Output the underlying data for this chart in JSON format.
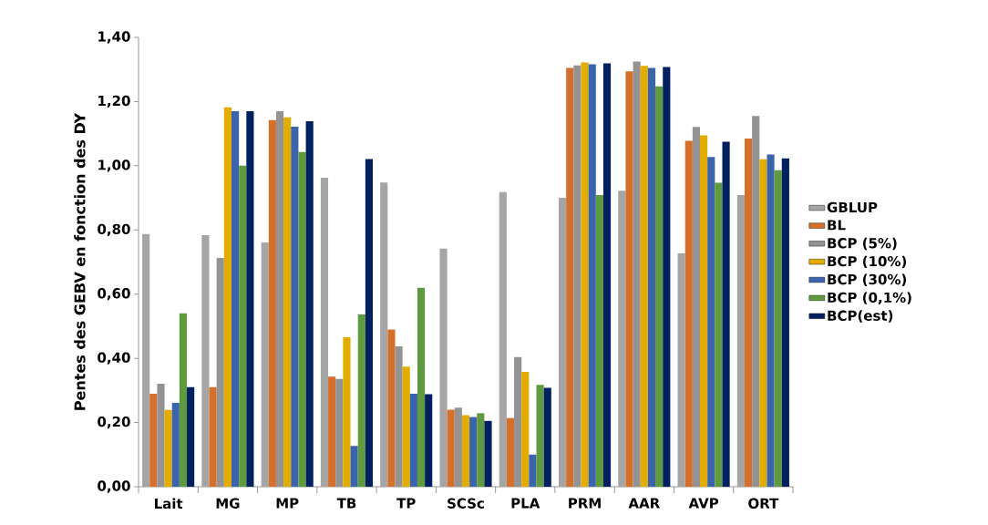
{
  "chart_data": {
    "type": "bar",
    "ylabel": "Pentes des GEBV en fonction des DY",
    "categories": [
      "Lait",
      "MG",
      "MP",
      "TB",
      "TP",
      "SCSc",
      "PLA",
      "PRM",
      "AAR",
      "AVP",
      "ORT"
    ],
    "series": [
      {
        "name": "GBLUP",
        "color": "#a5a5a5",
        "values": [
          0.787,
          0.784,
          0.761,
          0.963,
          0.948,
          0.742,
          0.918,
          0.9,
          0.922,
          0.727,
          0.909
        ]
      },
      {
        "name": "BL",
        "color": "#d4702b",
        "values": [
          0.29,
          0.31,
          1.142,
          0.343,
          0.49,
          0.24,
          0.214,
          1.305,
          1.294,
          1.078,
          1.085
        ]
      },
      {
        "name": "BCP (5%)",
        "color": "#939393",
        "values": [
          0.321,
          0.713,
          1.17,
          0.336,
          0.437,
          0.246,
          0.404,
          1.313,
          1.325,
          1.121,
          1.155
        ]
      },
      {
        "name": "BCP (10%)",
        "color": "#e3ac00",
        "values": [
          0.239,
          1.182,
          1.151,
          0.466,
          0.374,
          0.223,
          0.358,
          1.322,
          1.311,
          1.095,
          1.02
        ]
      },
      {
        "name": "BCP (30%)",
        "color": "#3c64ac",
        "values": [
          0.261,
          1.17,
          1.122,
          0.127,
          0.29,
          0.217,
          0.1,
          1.316,
          1.305,
          1.027,
          1.035
        ]
      },
      {
        "name": "BCP (0,1%)",
        "color": "#609a3f",
        "values": [
          0.54,
          1.0,
          1.043,
          0.537,
          0.62,
          0.229,
          0.317,
          0.909,
          1.247,
          0.947,
          0.986
        ]
      },
      {
        "name": "BCP(est)",
        "color": "#00205f",
        "values": [
          0.31,
          1.17,
          1.139,
          1.021,
          0.288,
          0.205,
          0.308,
          1.319,
          1.308,
          1.075,
          1.023
        ]
      }
    ],
    "ylim": [
      0,
      1.4
    ],
    "yticks": [
      {
        "value": 0,
        "label": "0,00"
      },
      {
        "value": 0.2,
        "label": "0,20"
      },
      {
        "value": 0.4,
        "label": "0,40"
      },
      {
        "value": 0.6,
        "label": "0,60"
      },
      {
        "value": 0.8,
        "label": "0,80"
      },
      {
        "value": 1.0,
        "label": "1,00"
      },
      {
        "value": 1.2,
        "label": "1,20"
      },
      {
        "value": 1.4,
        "label": "1,40"
      }
    ],
    "grid": false,
    "legend": "right"
  }
}
